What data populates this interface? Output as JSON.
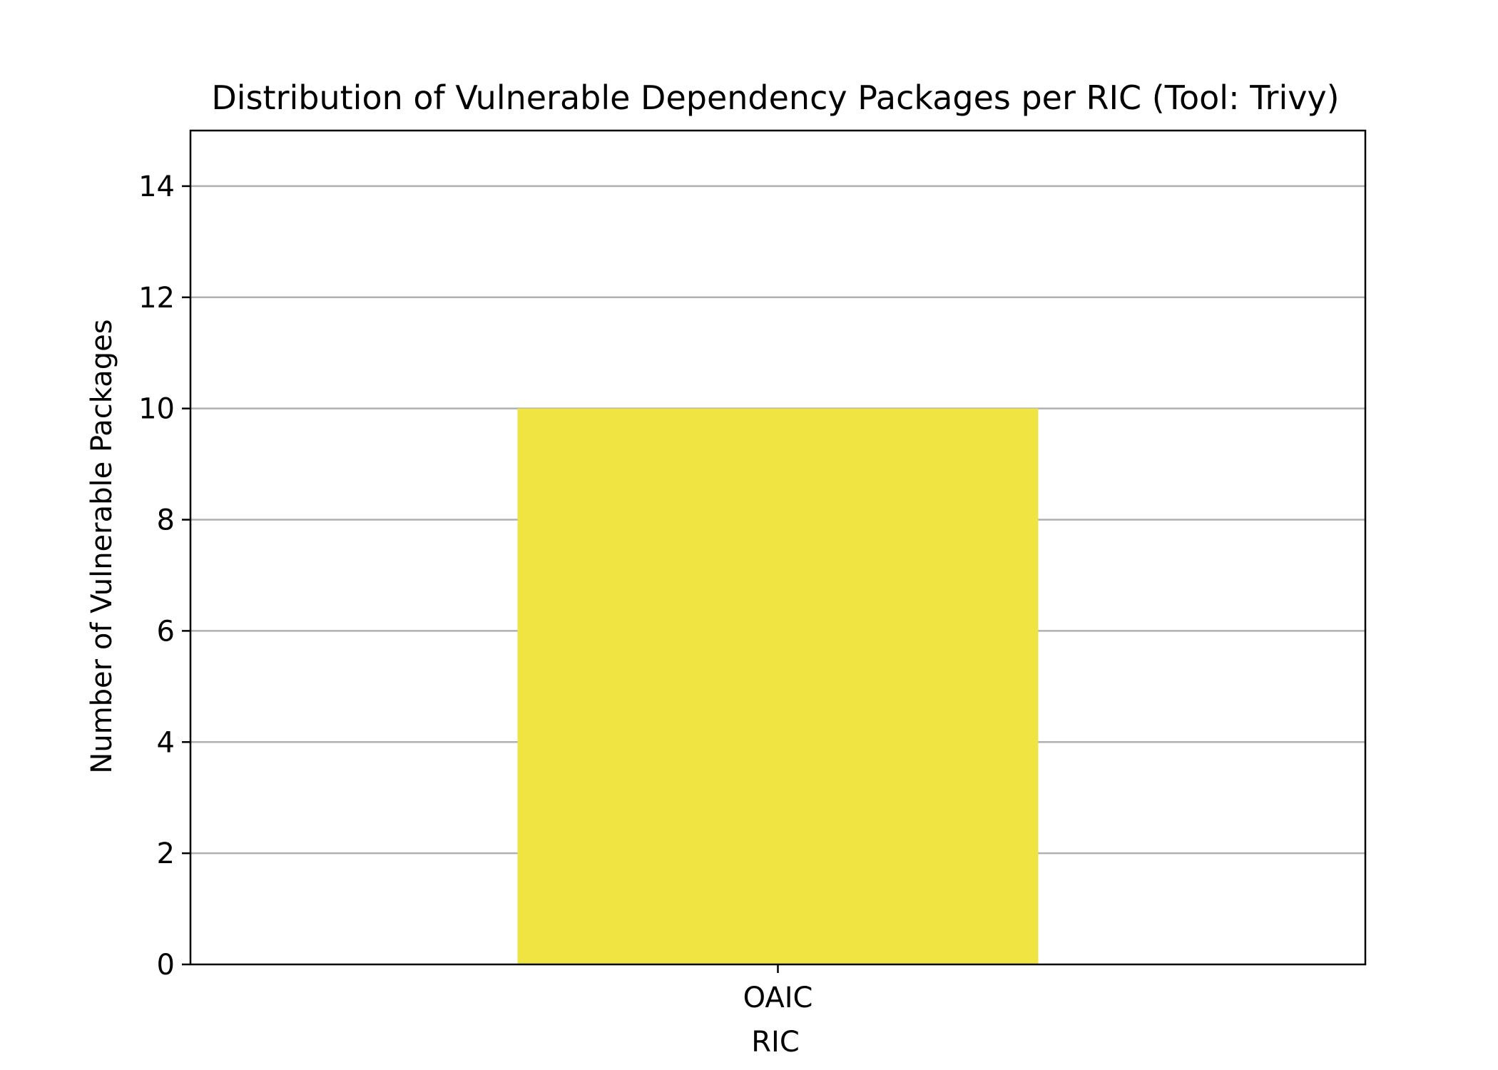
{
  "chart_data": {
    "type": "bar",
    "title": "Distribution of Vulnerable Dependency Packages per RIC (Tool: Trivy)",
    "xlabel": "RIC",
    "ylabel": "Number of Vulnerable Packages",
    "categories": [
      "OAIC"
    ],
    "values": [
      10
    ],
    "ylim": [
      0,
      15
    ],
    "yticks": [
      0,
      2,
      4,
      6,
      8,
      10,
      12,
      14
    ],
    "grid": "y",
    "bar_color": "#efe442",
    "grid_color": "#b0b0b0",
    "legend": "none"
  }
}
